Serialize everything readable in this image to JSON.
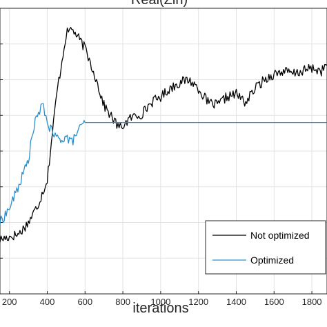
{
  "chart_data": {
    "type": "line",
    "title": "Real(Zin)",
    "xlabel": "iterations",
    "ylabel": "",
    "xlim": [
      150,
      1880
    ],
    "ylim": [
      0,
      1
    ],
    "xticks": [
      200,
      400,
      600,
      800,
      1000,
      1200,
      1400,
      1600,
      1800
    ],
    "grid": true,
    "legend_position": "bottom-right",
    "series": [
      {
        "name": "Not optimized",
        "color": "#000000",
        "x": [
          150,
          200,
          250,
          300,
          350,
          400,
          450,
          500,
          530,
          560,
          600,
          650,
          700,
          750,
          780,
          800,
          850,
          900,
          950,
          1000,
          1050,
          1100,
          1150,
          1200,
          1250,
          1300,
          1350,
          1400,
          1450,
          1500,
          1550,
          1600,
          1650,
          1700,
          1750,
          1800,
          1850,
          1880
        ],
        "y": [
          0.19,
          0.2,
          0.21,
          0.25,
          0.31,
          0.4,
          0.7,
          0.91,
          0.93,
          0.9,
          0.86,
          0.77,
          0.66,
          0.61,
          0.58,
          0.59,
          0.62,
          0.63,
          0.67,
          0.69,
          0.72,
          0.74,
          0.75,
          0.72,
          0.67,
          0.66,
          0.69,
          0.7,
          0.67,
          0.72,
          0.75,
          0.77,
          0.78,
          0.77,
          0.78,
          0.79,
          0.78,
          0.8
        ]
      },
      {
        "name": "Optimized",
        "color": "#2b8fce",
        "x": [
          150,
          200,
          250,
          300,
          330,
          360,
          380,
          400,
          430,
          460,
          500,
          530,
          560,
          590,
          600,
          650,
          700,
          800,
          1000,
          1200,
          1400,
          1600,
          1800,
          1880
        ],
        "y": [
          0.25,
          0.3,
          0.38,
          0.47,
          0.59,
          0.64,
          0.66,
          0.6,
          0.56,
          0.54,
          0.55,
          0.53,
          0.57,
          0.59,
          0.6,
          0.6,
          0.6,
          0.6,
          0.6,
          0.6,
          0.6,
          0.6,
          0.6,
          0.6
        ]
      }
    ]
  }
}
